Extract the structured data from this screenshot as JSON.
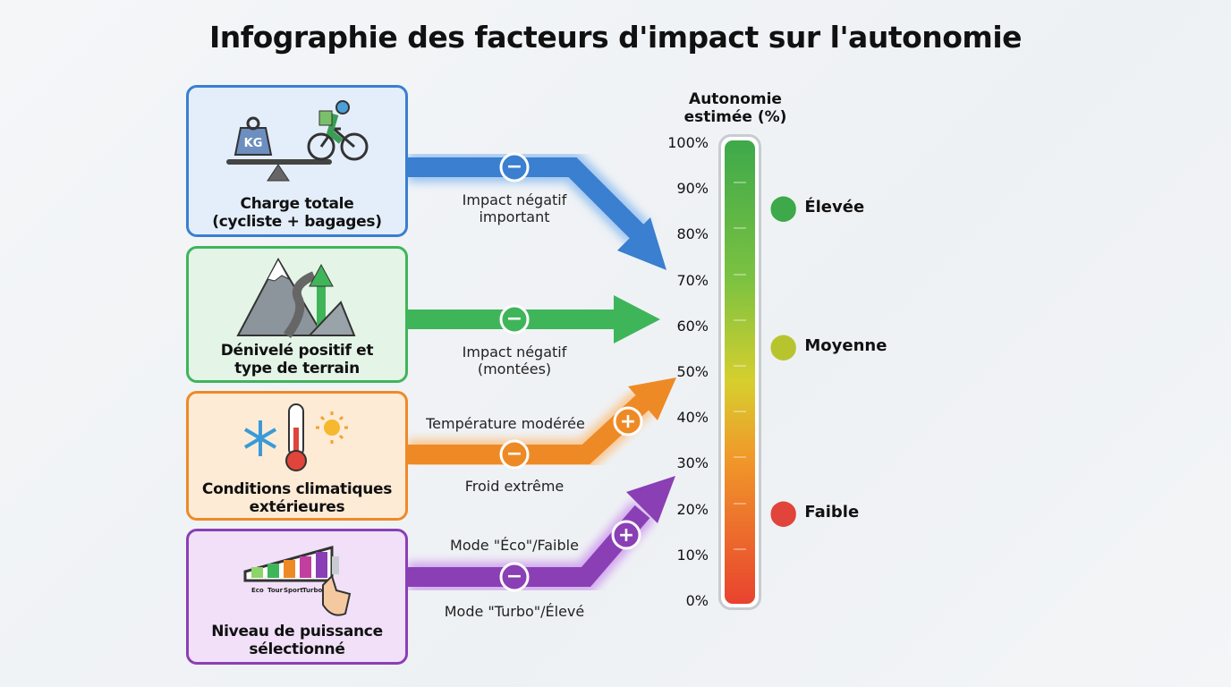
{
  "title": "Infographie des facteurs d'impact sur l'autonomie",
  "factors": [
    {
      "label_1": "Charge totale",
      "label_2": "(cycliste + bagages)",
      "color": "#3a7fd0",
      "icon": "weight-scale-cyclist-icon",
      "icon_text": "KG"
    },
    {
      "label_1": "Dénivelé positif et",
      "label_2": "type de terrain",
      "color": "#3fb55a",
      "icon": "mountain-road-up-arrow-icon"
    },
    {
      "label_1": "Conditions climatiques",
      "label_2": "extérieures",
      "color": "#ee8a26",
      "icon": "snowflake-thermometer-sun-icon"
    },
    {
      "label_1": "Niveau de puissance",
      "label_2": "sélectionné",
      "color": "#8a3fb5",
      "icon": "battery-power-modes-icon",
      "modes": [
        "Eco",
        "Tour",
        "Sport",
        "Turbo"
      ]
    }
  ],
  "arrows": {
    "charge": {
      "sign": "−",
      "text_1": "Impact négatif",
      "text_2": "important"
    },
    "terrain": {
      "sign": "−",
      "text_1": "Impact négatif",
      "text_2": "(montées)"
    },
    "climate": {
      "plus_sign": "+",
      "plus_text": "Température modérée",
      "minus_sign": "−",
      "minus_text": "Froid extrême"
    },
    "power": {
      "plus_sign": "+",
      "plus_text": "Mode \"Éco\"/Faible",
      "minus_sign": "−",
      "minus_text": "Mode \"Turbo\"/Élevé"
    }
  },
  "scale": {
    "title_1": "Autonomie",
    "title_2": "estimée (%)",
    "ticks": [
      "100%",
      "90%",
      "80%",
      "70%",
      "60%",
      "50%",
      "40%",
      "30%",
      "20%",
      "10%",
      "0%"
    ],
    "markers": [
      {
        "label": "Élevée",
        "color": "#3da94a"
      },
      {
        "label": "Moyenne",
        "color": "#b8c42e"
      },
      {
        "label": "Faible",
        "color": "#e0443a"
      }
    ]
  }
}
